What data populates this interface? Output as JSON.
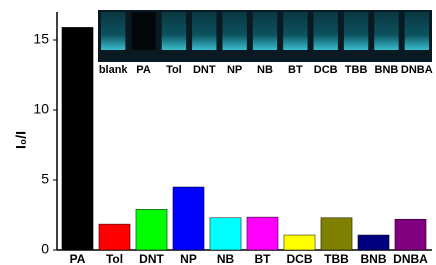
{
  "chart_data": {
    "type": "bar",
    "ylabel": "I₀/I",
    "categories": [
      "PA",
      "Tol",
      "DNT",
      "NP",
      "NB",
      "BT",
      "DCB",
      "TBB",
      "BNB",
      "DNBA"
    ],
    "values": [
      15.9,
      1.85,
      2.9,
      4.5,
      2.3,
      2.35,
      1.07,
      2.3,
      1.07,
      2.2
    ],
    "colors": [
      "#000000",
      "#ff0000",
      "#00ff00",
      "#0000ff",
      "#00ffff",
      "#ff00ff",
      "#ffff00",
      "#808000",
      "#000080",
      "#800080"
    ],
    "ylim": [
      0,
      17
    ],
    "yticks": [
      0,
      5,
      10,
      15
    ],
    "inset_labels": [
      "blank",
      "PA",
      "Tol",
      "DNT",
      "NP",
      "NB",
      "BT",
      "DCB",
      "TBB",
      "BNB",
      "DNBA"
    ]
  }
}
